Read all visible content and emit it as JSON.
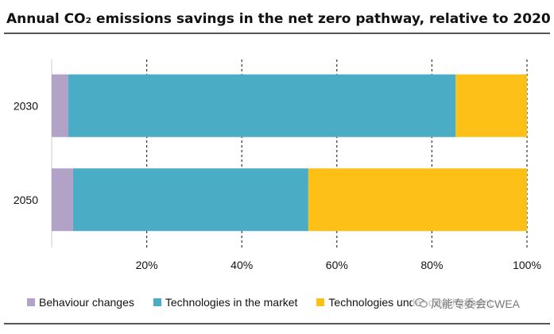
{
  "chart_data": {
    "type": "bar",
    "orientation": "horizontal",
    "stacked": true,
    "title": "Annual CO₂ emissions savings in the net zero pathway, relative to 2020",
    "categories": [
      "2030",
      "2050"
    ],
    "series": [
      {
        "name": "Behaviour changes",
        "values": [
          3.5,
          4.5
        ],
        "color": "#b3a2c7"
      },
      {
        "name": "Technologies in the market",
        "values": [
          81.5,
          49.5
        ],
        "color": "#4bacc6"
      },
      {
        "name": "Technologies under development",
        "values": [
          15,
          46
        ],
        "color": "#fcc016"
      }
    ],
    "xlim": [
      0,
      100
    ],
    "x_ticks": [
      "20%",
      "40%",
      "60%",
      "80%",
      "100%"
    ],
    "x_tick_values": [
      20,
      40,
      60,
      80,
      100
    ],
    "grid": "vertical dashed",
    "legend_position": "bottom"
  },
  "watermark": "风能专委会CWEA"
}
